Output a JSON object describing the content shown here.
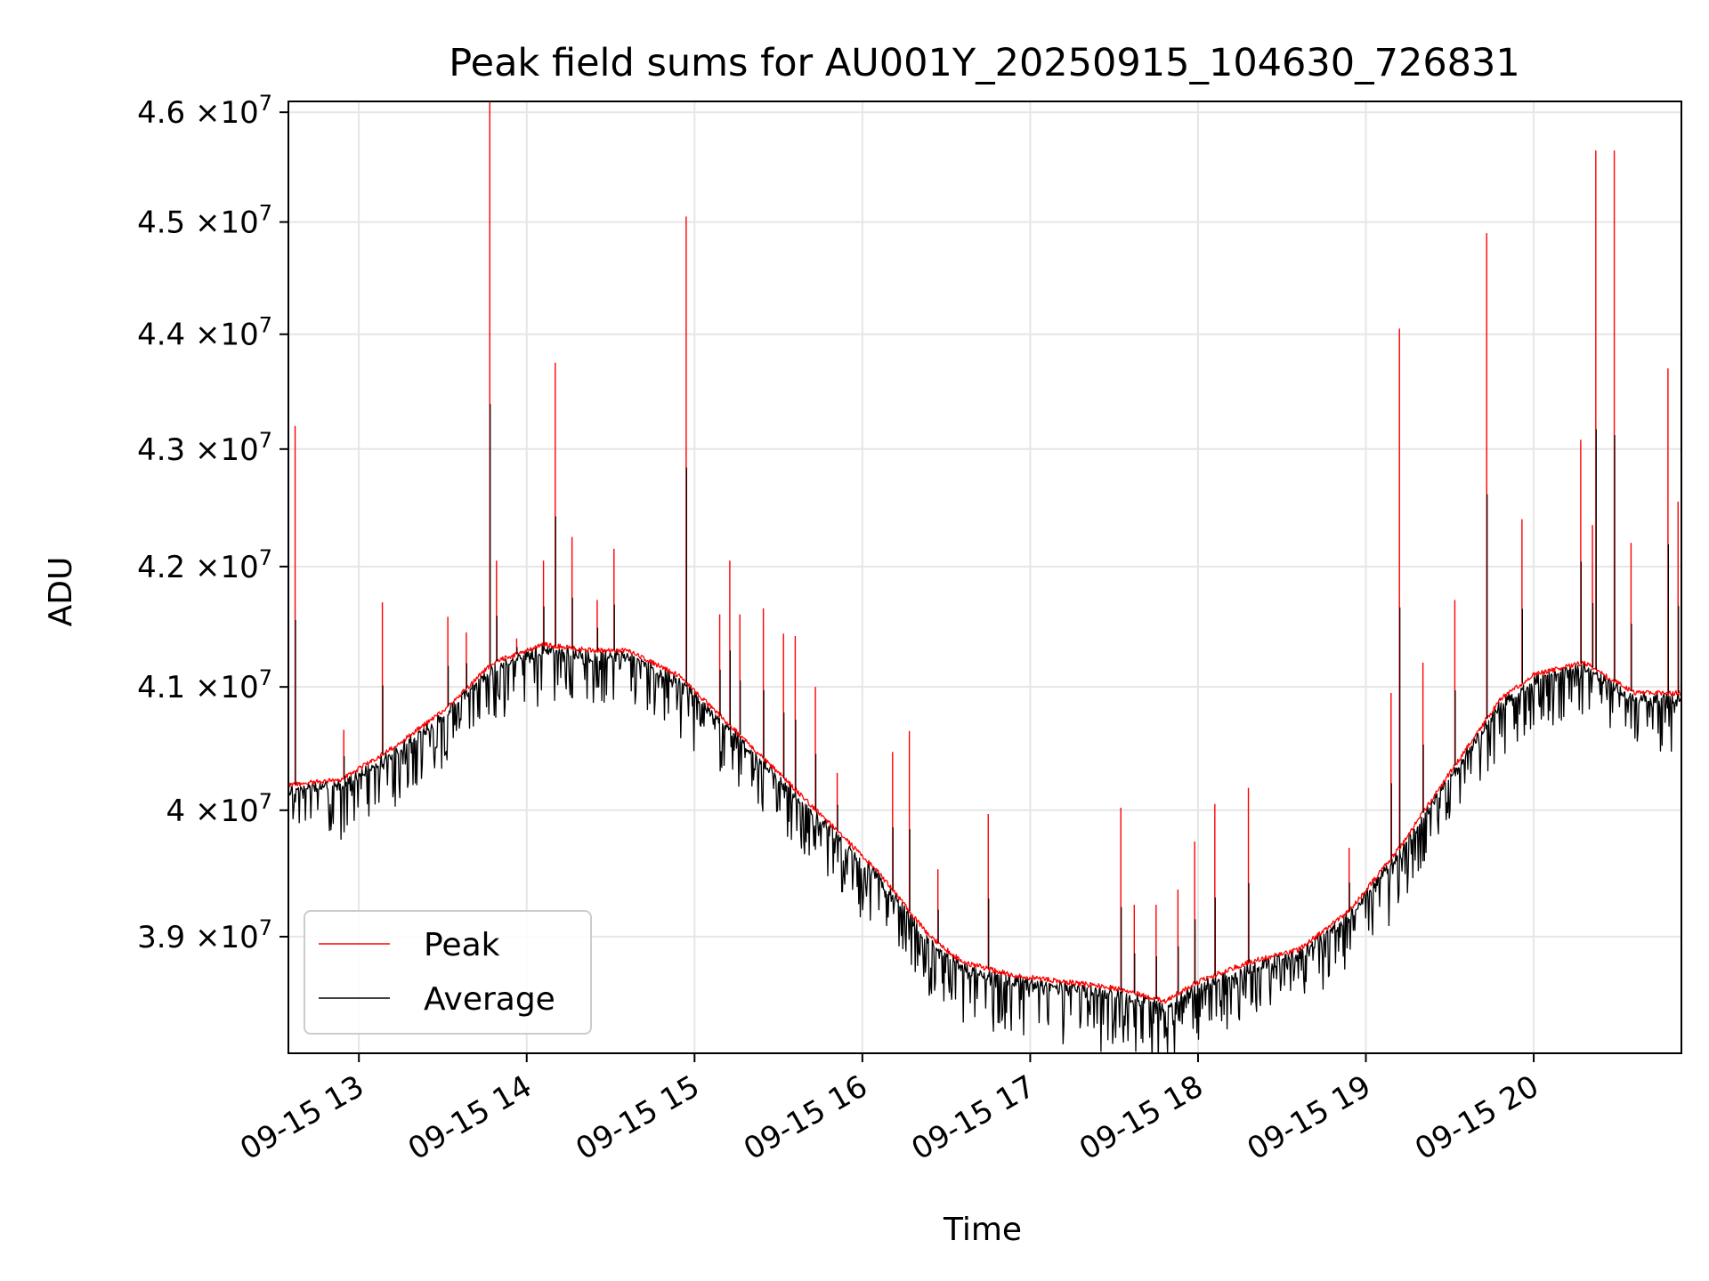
{
  "chart_data": {
    "type": "line",
    "title": "Peak field sums for AU001Y_20250915_104630_726831",
    "xlabel": "Time",
    "ylabel": "ADU",
    "y_scale": "log",
    "ylim": [
      38100000,
      46100000
    ],
    "xlim_hours": [
      12.58,
      20.88
    ],
    "grid": true,
    "legend_position": "lower-left",
    "x_ticks": [
      {
        "value": 13,
        "label": "09-15 13"
      },
      {
        "value": 14,
        "label": "09-15 14"
      },
      {
        "value": 15,
        "label": "09-15 15"
      },
      {
        "value": 16,
        "label": "09-15 16"
      },
      {
        "value": 17,
        "label": "09-15 17"
      },
      {
        "value": 18,
        "label": "09-15 18"
      },
      {
        "value": 19,
        "label": "09-15 19"
      },
      {
        "value": 20,
        "label": "09-15 20"
      }
    ],
    "y_ticks": [
      {
        "value": 39000000,
        "mantissa": "3.9",
        "exponent": "7"
      },
      {
        "value": 40000000,
        "mantissa": "4",
        "exponent": "7"
      },
      {
        "value": 41000000,
        "mantissa": "4.1",
        "exponent": "7"
      },
      {
        "value": 42000000,
        "mantissa": "4.2",
        "exponent": "7"
      },
      {
        "value": 43000000,
        "mantissa": "4.3",
        "exponent": "7"
      },
      {
        "value": 44000000,
        "mantissa": "4.4",
        "exponent": "7"
      },
      {
        "value": 45000000,
        "mantissa": "4.5",
        "exponent": "7"
      },
      {
        "value": 46000000,
        "mantissa": "4.6",
        "exponent": "7"
      }
    ],
    "tick_prefix": "×10",
    "series": [
      {
        "name": "Peak",
        "color": "#ff0000"
      },
      {
        "name": "Average",
        "color": "#000000"
      }
    ],
    "baseline": {
      "x": [
        12.58,
        12.9,
        13.2,
        13.5,
        13.8,
        14.1,
        14.4,
        14.6,
        14.9,
        15.2,
        15.5,
        15.8,
        16.1,
        16.4,
        16.6,
        16.9,
        17.2,
        17.5,
        17.8,
        18.0,
        18.3,
        18.6,
        18.9,
        19.2,
        19.5,
        19.8,
        20.0,
        20.3,
        20.6,
        20.88
      ],
      "y": [
        40200000,
        40250000,
        40500000,
        40800000,
        41200000,
        41350000,
        41300000,
        41300000,
        41100000,
        40700000,
        40300000,
        39900000,
        39500000,
        39000000,
        38800000,
        38700000,
        38650000,
        38600000,
        38500000,
        38650000,
        38800000,
        38900000,
        39200000,
        39700000,
        40300000,
        40900000,
        41100000,
        41200000,
        40950000,
        40950000
      ]
    },
    "peak_spikes": [
      {
        "x": 12.62,
        "y": 43200000
      },
      {
        "x": 12.91,
        "y": 40650000
      },
      {
        "x": 13.14,
        "y": 41700000
      },
      {
        "x": 13.53,
        "y": 41580000
      },
      {
        "x": 13.64,
        "y": 41450000
      },
      {
        "x": 13.78,
        "y": 46100000
      },
      {
        "x": 13.82,
        "y": 42050000
      },
      {
        "x": 13.94,
        "y": 41400000
      },
      {
        "x": 14.1,
        "y": 42050000
      },
      {
        "x": 14.17,
        "y": 43750000
      },
      {
        "x": 14.27,
        "y": 42250000
      },
      {
        "x": 14.42,
        "y": 41720000
      },
      {
        "x": 14.52,
        "y": 42150000
      },
      {
        "x": 14.95,
        "y": 45050000
      },
      {
        "x": 15.15,
        "y": 41600000
      },
      {
        "x": 15.21,
        "y": 42050000
      },
      {
        "x": 15.27,
        "y": 41600000
      },
      {
        "x": 15.41,
        "y": 41650000
      },
      {
        "x": 15.53,
        "y": 41440000
      },
      {
        "x": 15.6,
        "y": 41420000
      },
      {
        "x": 15.72,
        "y": 41000000
      },
      {
        "x": 15.85,
        "y": 40300000
      },
      {
        "x": 16.18,
        "y": 40470000
      },
      {
        "x": 16.28,
        "y": 40640000
      },
      {
        "x": 16.45,
        "y": 39530000
      },
      {
        "x": 16.75,
        "y": 39970000
      },
      {
        "x": 17.54,
        "y": 40020000
      },
      {
        "x": 17.62,
        "y": 39250000
      },
      {
        "x": 17.75,
        "y": 39250000
      },
      {
        "x": 17.88,
        "y": 39370000
      },
      {
        "x": 17.98,
        "y": 39750000
      },
      {
        "x": 18.1,
        "y": 40050000
      },
      {
        "x": 18.3,
        "y": 40180000
      },
      {
        "x": 18.9,
        "y": 39700000
      },
      {
        "x": 19.15,
        "y": 40950000
      },
      {
        "x": 19.2,
        "y": 44050000
      },
      {
        "x": 19.34,
        "y": 41200000
      },
      {
        "x": 19.53,
        "y": 41720000
      },
      {
        "x": 19.72,
        "y": 44900000
      },
      {
        "x": 19.93,
        "y": 42400000
      },
      {
        "x": 20.28,
        "y": 43080000
      },
      {
        "x": 20.35,
        "y": 42350000
      },
      {
        "x": 20.37,
        "y": 45650000
      },
      {
        "x": 20.48,
        "y": 45650000
      },
      {
        "x": 20.58,
        "y": 42200000
      },
      {
        "x": 20.8,
        "y": 43700000
      },
      {
        "x": 20.86,
        "y": 42550000
      }
    ]
  }
}
